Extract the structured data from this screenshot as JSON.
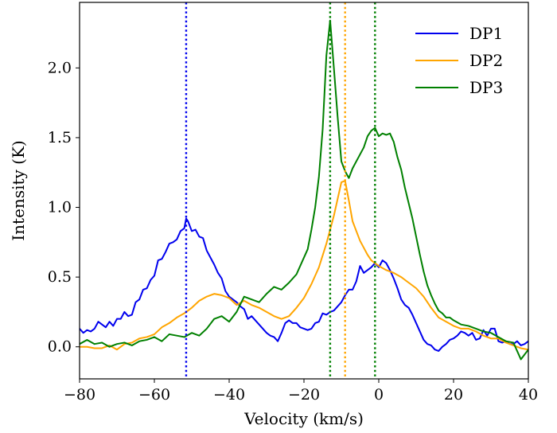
{
  "chart_data": {
    "type": "line",
    "xlabel": "Velocity (km/s)",
    "ylabel": "Intensity (K)",
    "xlim": [
      -80,
      40
    ],
    "ylim": [
      -0.23,
      2.47
    ],
    "xticks": [
      -80,
      -60,
      -40,
      -20,
      0,
      20,
      40
    ],
    "xtick_labels": [
      "−80",
      "−60",
      "−40",
      "−20",
      "0",
      "20",
      "40"
    ],
    "yticks": [
      0.0,
      0.5,
      1.0,
      1.5,
      2.0
    ],
    "ytick_labels": [
      "0.0",
      "0.5",
      "1.0",
      "1.5",
      "2.0"
    ],
    "grid": false,
    "legend_position": "top-right",
    "series": [
      {
        "name": "DP1",
        "color": "#0000ee",
        "marker_line": -51.5,
        "points": [
          [
            -80,
            0.13
          ],
          [
            -79,
            0.1
          ],
          [
            -78,
            0.12
          ],
          [
            -77,
            0.11
          ],
          [
            -76,
            0.13
          ],
          [
            -75,
            0.18
          ],
          [
            -74,
            0.16
          ],
          [
            -73,
            0.14
          ],
          [
            -72,
            0.18
          ],
          [
            -71,
            0.15
          ],
          [
            -70,
            0.2
          ],
          [
            -69,
            0.2
          ],
          [
            -68,
            0.25
          ],
          [
            -67,
            0.22
          ],
          [
            -66,
            0.23
          ],
          [
            -65,
            0.32
          ],
          [
            -64,
            0.34
          ],
          [
            -63,
            0.41
          ],
          [
            -62,
            0.42
          ],
          [
            -61,
            0.48
          ],
          [
            -60,
            0.51
          ],
          [
            -59,
            0.62
          ],
          [
            -58,
            0.63
          ],
          [
            -57,
            0.68
          ],
          [
            -56,
            0.74
          ],
          [
            -55,
            0.75
          ],
          [
            -54,
            0.77
          ],
          [
            -53,
            0.83
          ],
          [
            -52,
            0.85
          ],
          [
            -51.5,
            0.92
          ],
          [
            -51,
            0.9
          ],
          [
            -50,
            0.83
          ],
          [
            -49,
            0.84
          ],
          [
            -48,
            0.79
          ],
          [
            -47,
            0.78
          ],
          [
            -46,
            0.69
          ],
          [
            -45,
            0.64
          ],
          [
            -44,
            0.59
          ],
          [
            -43,
            0.53
          ],
          [
            -42,
            0.49
          ],
          [
            -41,
            0.4
          ],
          [
            -40,
            0.36
          ],
          [
            -39,
            0.34
          ],
          [
            -38,
            0.32
          ],
          [
            -37,
            0.29
          ],
          [
            -36,
            0.27
          ],
          [
            -35,
            0.2
          ],
          [
            -34,
            0.22
          ],
          [
            -33,
            0.19
          ],
          [
            -32,
            0.16
          ],
          [
            -31,
            0.13
          ],
          [
            -30,
            0.1
          ],
          [
            -29,
            0.08
          ],
          [
            -28,
            0.07
          ],
          [
            -27,
            0.04
          ],
          [
            -26,
            0.1
          ],
          [
            -25,
            0.17
          ],
          [
            -24,
            0.19
          ],
          [
            -23,
            0.17
          ],
          [
            -22,
            0.17
          ],
          [
            -21,
            0.14
          ],
          [
            -20,
            0.13
          ],
          [
            -19,
            0.12
          ],
          [
            -18,
            0.13
          ],
          [
            -17,
            0.17
          ],
          [
            -16,
            0.18
          ],
          [
            -15,
            0.24
          ],
          [
            -14,
            0.23
          ],
          [
            -13,
            0.25
          ],
          [
            -12,
            0.26
          ],
          [
            -11,
            0.29
          ],
          [
            -10,
            0.32
          ],
          [
            -9,
            0.37
          ],
          [
            -8,
            0.41
          ],
          [
            -7,
            0.41
          ],
          [
            -6,
            0.47
          ],
          [
            -5,
            0.58
          ],
          [
            -4,
            0.53
          ],
          [
            -3,
            0.55
          ],
          [
            -2,
            0.57
          ],
          [
            -1,
            0.6
          ],
          [
            0,
            0.57
          ],
          [
            1,
            0.62
          ],
          [
            2,
            0.6
          ],
          [
            3,
            0.55
          ],
          [
            4,
            0.49
          ],
          [
            5,
            0.42
          ],
          [
            6,
            0.34
          ],
          [
            7,
            0.3
          ],
          [
            8,
            0.28
          ],
          [
            9,
            0.23
          ],
          [
            10,
            0.17
          ],
          [
            11,
            0.11
          ],
          [
            12,
            0.05
          ],
          [
            13,
            0.02
          ],
          [
            14,
            0.01
          ],
          [
            15,
            -0.02
          ],
          [
            16,
            -0.03
          ],
          [
            17,
            0.0
          ],
          [
            18,
            0.02
          ],
          [
            19,
            0.05
          ],
          [
            20,
            0.06
          ],
          [
            21,
            0.08
          ],
          [
            22,
            0.11
          ],
          [
            23,
            0.1
          ],
          [
            24,
            0.08
          ],
          [
            25,
            0.1
          ],
          [
            26,
            0.05
          ],
          [
            27,
            0.06
          ],
          [
            28,
            0.12
          ],
          [
            29,
            0.08
          ],
          [
            30,
            0.13
          ],
          [
            31,
            0.13
          ],
          [
            32,
            0.04
          ],
          [
            33,
            0.03
          ],
          [
            34,
            0.04
          ],
          [
            35,
            0.02
          ],
          [
            36,
            0.02
          ],
          [
            37,
            0.04
          ],
          [
            38,
            0.01
          ],
          [
            39,
            0.02
          ],
          [
            40,
            0.04
          ]
        ]
      },
      {
        "name": "DP2",
        "color": "#ffa500",
        "marker_line": -9,
        "points": [
          [
            -80,
            0.0
          ],
          [
            -78,
            0.0
          ],
          [
            -76,
            -0.01
          ],
          [
            -74,
            -0.01
          ],
          [
            -72,
            0.01
          ],
          [
            -70,
            -0.02
          ],
          [
            -68,
            0.02
          ],
          [
            -66,
            0.03
          ],
          [
            -64,
            0.06
          ],
          [
            -62,
            0.07
          ],
          [
            -60,
            0.09
          ],
          [
            -58,
            0.14
          ],
          [
            -56,
            0.17
          ],
          [
            -54,
            0.21
          ],
          [
            -52,
            0.24
          ],
          [
            -50,
            0.28
          ],
          [
            -48,
            0.33
          ],
          [
            -46,
            0.36
          ],
          [
            -44,
            0.38
          ],
          [
            -42,
            0.37
          ],
          [
            -40,
            0.35
          ],
          [
            -38,
            0.3
          ],
          [
            -36,
            0.33
          ],
          [
            -34,
            0.3
          ],
          [
            -32,
            0.28
          ],
          [
            -30,
            0.25
          ],
          [
            -28,
            0.22
          ],
          [
            -26,
            0.2
          ],
          [
            -24,
            0.22
          ],
          [
            -22,
            0.28
          ],
          [
            -20,
            0.35
          ],
          [
            -18,
            0.45
          ],
          [
            -16,
            0.57
          ],
          [
            -14,
            0.74
          ],
          [
            -12,
            0.94
          ],
          [
            -11,
            1.06
          ],
          [
            -10,
            1.18
          ],
          [
            -9,
            1.19
          ],
          [
            -8,
            1.05
          ],
          [
            -7,
            0.9
          ],
          [
            -6,
            0.83
          ],
          [
            -5,
            0.76
          ],
          [
            -4,
            0.71
          ],
          [
            -3,
            0.66
          ],
          [
            -2,
            0.62
          ],
          [
            0,
            0.58
          ],
          [
            2,
            0.55
          ],
          [
            4,
            0.53
          ],
          [
            6,
            0.5
          ],
          [
            8,
            0.46
          ],
          [
            10,
            0.42
          ],
          [
            12,
            0.36
          ],
          [
            14,
            0.28
          ],
          [
            16,
            0.21
          ],
          [
            18,
            0.18
          ],
          [
            20,
            0.15
          ],
          [
            22,
            0.13
          ],
          [
            24,
            0.13
          ],
          [
            26,
            0.11
          ],
          [
            28,
            0.08
          ],
          [
            30,
            0.06
          ],
          [
            32,
            0.06
          ],
          [
            34,
            0.03
          ],
          [
            36,
            0.01
          ],
          [
            38,
            -0.01
          ],
          [
            40,
            -0.02
          ]
        ]
      },
      {
        "name": "DP3",
        "color": "#008000",
        "marker_lines": [
          -13,
          -1
        ],
        "points": [
          [
            -80,
            0.02
          ],
          [
            -78,
            0.05
          ],
          [
            -76,
            0.02
          ],
          [
            -74,
            0.03
          ],
          [
            -72,
            0.0
          ],
          [
            -70,
            0.02
          ],
          [
            -68,
            0.03
          ],
          [
            -66,
            0.01
          ],
          [
            -64,
            0.04
          ],
          [
            -62,
            0.05
          ],
          [
            -60,
            0.07
          ],
          [
            -58,
            0.04
          ],
          [
            -56,
            0.09
          ],
          [
            -54,
            0.08
          ],
          [
            -52,
            0.07
          ],
          [
            -50,
            0.1
          ],
          [
            -48,
            0.08
          ],
          [
            -46,
            0.13
          ],
          [
            -44,
            0.2
          ],
          [
            -42,
            0.22
          ],
          [
            -40,
            0.18
          ],
          [
            -38,
            0.25
          ],
          [
            -36,
            0.36
          ],
          [
            -34,
            0.34
          ],
          [
            -32,
            0.32
          ],
          [
            -30,
            0.38
          ],
          [
            -28,
            0.43
          ],
          [
            -26,
            0.41
          ],
          [
            -24,
            0.46
          ],
          [
            -22,
            0.52
          ],
          [
            -20,
            0.64
          ],
          [
            -19,
            0.7
          ],
          [
            -18,
            0.84
          ],
          [
            -17,
            1.0
          ],
          [
            -16,
            1.22
          ],
          [
            -15,
            1.56
          ],
          [
            -14,
            2.09
          ],
          [
            -13,
            2.34
          ],
          [
            -12,
            2.0
          ],
          [
            -11,
            1.65
          ],
          [
            -10,
            1.33
          ],
          [
            -9,
            1.26
          ],
          [
            -8,
            1.21
          ],
          [
            -7,
            1.28
          ],
          [
            -6,
            1.33
          ],
          [
            -5,
            1.38
          ],
          [
            -4,
            1.43
          ],
          [
            -3,
            1.51
          ],
          [
            -2,
            1.55
          ],
          [
            -1,
            1.57
          ],
          [
            0,
            1.51
          ],
          [
            1,
            1.53
          ],
          [
            2,
            1.52
          ],
          [
            3,
            1.53
          ],
          [
            4,
            1.47
          ],
          [
            5,
            1.36
          ],
          [
            6,
            1.27
          ],
          [
            7,
            1.14
          ],
          [
            8,
            1.03
          ],
          [
            9,
            0.92
          ],
          [
            10,
            0.79
          ],
          [
            11,
            0.66
          ],
          [
            12,
            0.54
          ],
          [
            13,
            0.44
          ],
          [
            14,
            0.37
          ],
          [
            15,
            0.31
          ],
          [
            16,
            0.26
          ],
          [
            17,
            0.24
          ],
          [
            18,
            0.21
          ],
          [
            19,
            0.21
          ],
          [
            20,
            0.19
          ],
          [
            22,
            0.16
          ],
          [
            24,
            0.15
          ],
          [
            26,
            0.13
          ],
          [
            28,
            0.11
          ],
          [
            30,
            0.1
          ],
          [
            32,
            0.07
          ],
          [
            34,
            0.04
          ],
          [
            36,
            0.03
          ],
          [
            38,
            -0.09
          ],
          [
            40,
            -0.02
          ]
        ]
      }
    ]
  }
}
